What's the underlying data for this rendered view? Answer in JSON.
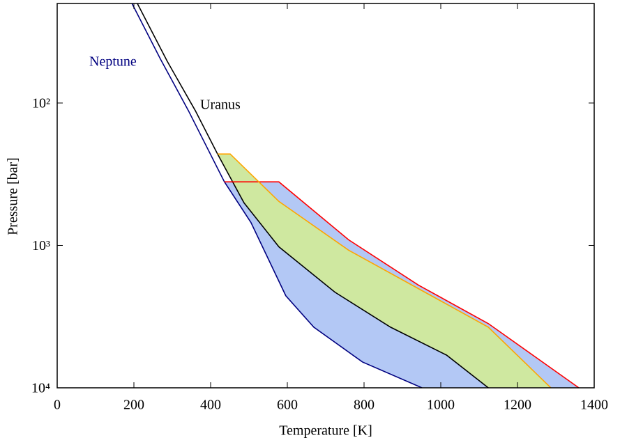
{
  "chart_data": {
    "type": "line",
    "xlabel": "Temperature [K]",
    "ylabel": "Pressure [bar]",
    "xlim": [
      0,
      1400
    ],
    "xticks": [
      0,
      200,
      400,
      600,
      800,
      1000,
      1200,
      1400
    ],
    "ylim": [
      20,
      10000
    ],
    "y_log": true,
    "y_inverted": true,
    "yticks": [
      {
        "value": 100,
        "label": "10²"
      },
      {
        "value": 1000,
        "label": "10³"
      },
      {
        "value": 10000,
        "label": "10⁴"
      }
    ],
    "grid": false,
    "series": [
      {
        "name": "Neptune",
        "color": "#000080",
        "x": [
          195,
          269,
          342,
          436,
          505,
          596,
          669,
          796,
          951
        ],
        "values": [
          20,
          49,
          113,
          358,
          689,
          2256,
          3750,
          6590,
          10000
        ]
      },
      {
        "name": "Uranus",
        "color": "#000000",
        "x": [
          209,
          287,
          360,
          418,
          487,
          578,
          724,
          869,
          1015,
          1124
        ],
        "values": [
          20,
          51,
          113,
          228,
          502,
          1023,
          2130,
          3750,
          5890,
          10000
        ]
      },
      {
        "color": "#ff0000",
        "fill": "#b3c8f5",
        "fill_to": "Neptune",
        "x": [
          436,
          578,
          760,
          942,
          1124,
          1360
        ],
        "values": [
          358,
          358,
          914,
          1901,
          3540,
          10000
        ]
      },
      {
        "color": "#ffa500",
        "fill": "#cfe8a0",
        "fill_to": "Uranus",
        "x": [
          418,
          451,
          578,
          760,
          942,
          1124,
          1287
        ],
        "values": [
          228,
          228,
          491,
          1081,
          2013,
          3750,
          10000
        ]
      }
    ]
  }
}
